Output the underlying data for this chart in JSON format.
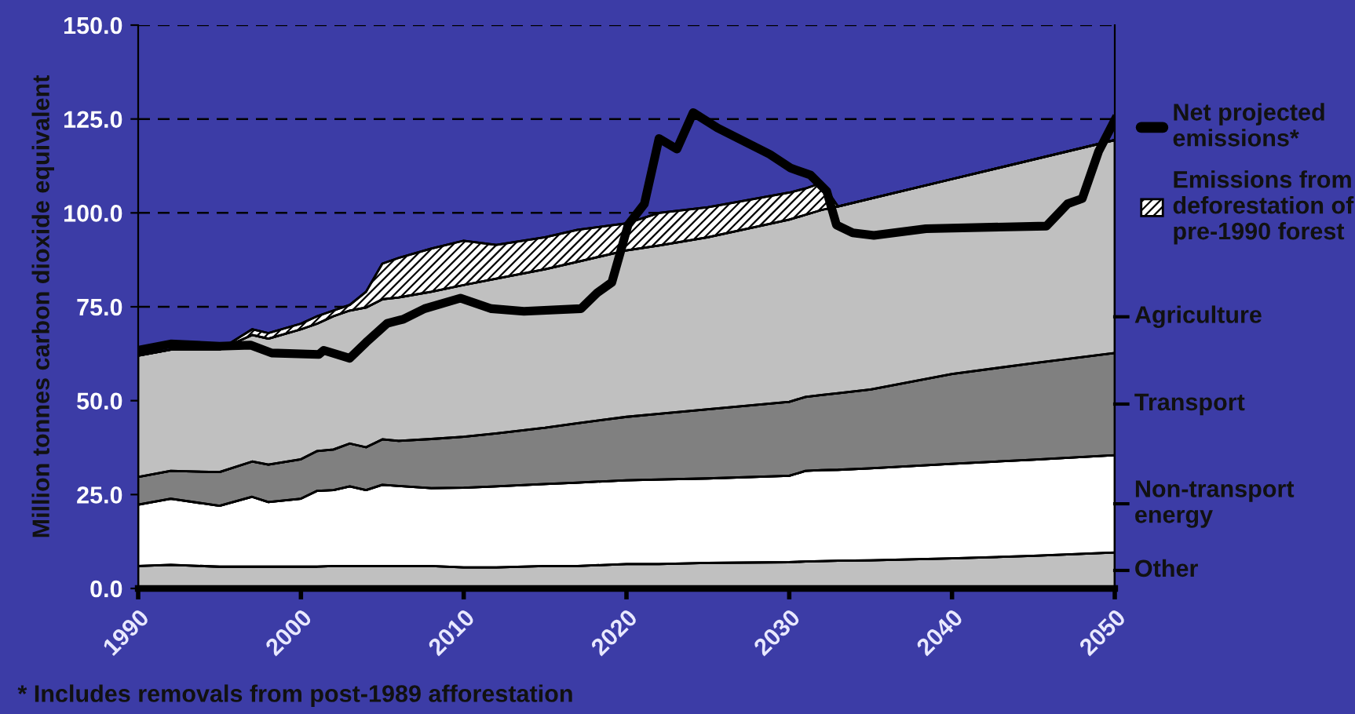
{
  "chart_data": {
    "type": "area",
    "stacked": true,
    "ylabel": "Million tonnes carbon dioxide equivalent",
    "annotations": [
      "* Includes removals from post-1989 afforestation"
    ],
    "x": [
      1990,
      1992,
      1995,
      1997,
      1998,
      2000,
      2001,
      2002,
      2003,
      2004,
      2005,
      2006,
      2008,
      2010,
      2012,
      2015,
      2017,
      2020,
      2022,
      2025,
      2030,
      2031,
      2032,
      2033,
      2035,
      2040,
      2045,
      2050
    ],
    "xlim": [
      1990,
      2050
    ],
    "xticks": [
      1990,
      2000,
      2010,
      2020,
      2030,
      2040,
      2050
    ],
    "ylim": [
      0,
      150
    ],
    "yticks": [
      {
        "value": 0,
        "label": "0.0"
      },
      {
        "value": 25,
        "label": "25.0"
      },
      {
        "value": 50,
        "label": "50.0"
      },
      {
        "value": 75,
        "label": "75.0"
      },
      {
        "value": 100,
        "label": "100.0"
      },
      {
        "value": 125,
        "label": "125.0"
      },
      {
        "value": 150,
        "label": "150.0"
      }
    ],
    "grid": "y",
    "legend": "right",
    "series": [
      {
        "name": "Other",
        "color": "#c0c0c0",
        "values": [
          6,
          6.3,
          5.8,
          5.8,
          5.8,
          5.8,
          5.8,
          6,
          6,
          6,
          6,
          6,
          6,
          5.6,
          5.6,
          6,
          6,
          6.5,
          6.5,
          6.8,
          7,
          7.2,
          7.3,
          7.4,
          7.5,
          8,
          8.7,
          9.6
        ]
      },
      {
        "name": "Non-transport energy",
        "color": "#ffffff",
        "values": [
          16.3,
          17.6,
          16.2,
          18.6,
          17.2,
          18.1,
          20.2,
          20.2,
          21.2,
          20.2,
          21.6,
          21.3,
          20.7,
          21.2,
          21.6,
          21.8,
          22.2,
          22.3,
          22.5,
          22.5,
          23,
          24.1,
          24.2,
          24.2,
          24.5,
          25.2,
          25.6,
          25.9
        ]
      },
      {
        "name": "Transport",
        "color": "#808080",
        "values": [
          7.4,
          7.4,
          9,
          9.4,
          10,
          10.5,
          10.6,
          10.8,
          11.4,
          11.4,
          12.1,
          12,
          13.1,
          13.6,
          14.1,
          15,
          15.8,
          16.9,
          17.5,
          18.4,
          19.7,
          19.7,
          20,
          20.4,
          21,
          23.9,
          25.7,
          27.2
        ]
      },
      {
        "name": "Agriculture",
        "color": "#c0c0c0",
        "values": [
          32.3,
          32.3,
          32.6,
          33.7,
          33.5,
          34.6,
          33.9,
          35.5,
          35.4,
          37.2,
          37.3,
          38.2,
          39.2,
          40.4,
          41.2,
          42.2,
          43,
          44.3,
          44.8,
          45.8,
          48.5,
          48.5,
          49.3,
          49.7,
          50.8,
          51.9,
          54.2,
          56.7
        ]
      },
      {
        "name": "Emissions from deforestation of pre-1990 forest",
        "color": "#000000",
        "values": [
          0,
          0,
          0,
          1.5,
          1.5,
          1.5,
          2,
          1.5,
          1.5,
          4.2,
          9.5,
          10.5,
          11.5,
          11.8,
          9,
          8.5,
          8.5,
          7.2,
          8.7,
          8,
          7.2,
          7,
          7.2,
          0,
          0,
          0,
          0,
          0
        ]
      },
      {
        "name": "Net projected emissions*",
        "type": "line",
        "color": "#000000",
        "x": [
          1990,
          1992,
          1995,
          1996.9,
          1998.2,
          2001.1,
          2001.4,
          2003,
          2004,
          2005.3,
          2006.3,
          2007.6,
          2009.8,
          2011.7,
          2013.7,
          2017.2,
          2018.2,
          2019.1,
          2020.1,
          2021.1,
          2022,
          2023.1,
          2024.1,
          2025.6,
          2027.2,
          2028.8,
          2030.1,
          2031.3,
          2032.3,
          2032.9,
          2033.9,
          2035.2,
          2038.4,
          2045.8,
          2047.1,
          2048,
          2049,
          2050
        ],
        "values": [
          63.4,
          65.1,
          64.5,
          64.8,
          62.7,
          62.3,
          63.4,
          61.3,
          65.5,
          70.6,
          71.7,
          74.5,
          77.3,
          74.5,
          73.8,
          74.5,
          78.7,
          81.5,
          96.8,
          102.4,
          119.8,
          117,
          126.7,
          122.6,
          119.1,
          115.6,
          111.9,
          110.1,
          105.8,
          96.8,
          94.7,
          94,
          95.8,
          96.5,
          102.4,
          103.8,
          116.3,
          124.7
        ]
      }
    ]
  }
}
